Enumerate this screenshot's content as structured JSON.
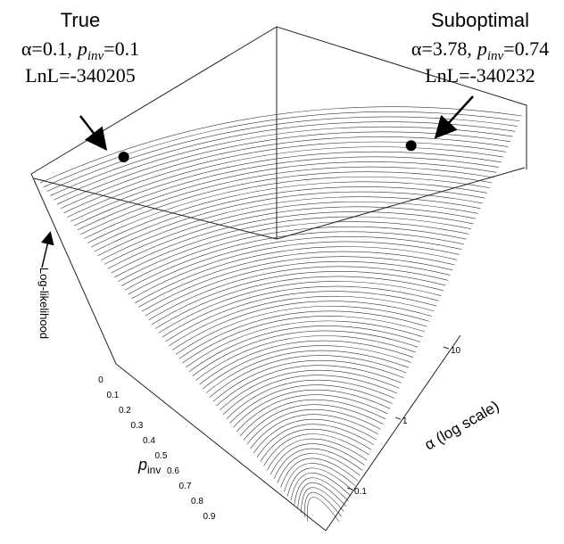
{
  "chart_data": {
    "type": "surface3d",
    "param_symbol": "p",
    "param_subscript": "inv",
    "zlabel": "Log-likelihood",
    "xlabel_alpha": "α (log scale)",
    "alpha_log": true,
    "alpha_lim": [
      0.03,
      16
    ],
    "alpha_ticks": [
      0.1,
      1,
      10
    ],
    "pinv_lim": [
      -0.1,
      1.0
    ],
    "pinv_ticks": [
      0,
      0.1,
      0.2,
      0.3,
      0.4,
      0.5,
      0.6,
      0.7,
      0.8,
      0.9
    ],
    "annotations": [
      {
        "label": "True",
        "alpha": {
          "value": 0.1,
          "label": "α=0.1,"
        },
        "pinv": {
          "value": 0.1,
          "label": "=0.1"
        },
        "lnl": {
          "value": -340205,
          "label": "LnL=-340205"
        }
      },
      {
        "label": "Suboptimal",
        "alpha": {
          "value": 3.78,
          "label": "α=3.78,"
        },
        "pinv": {
          "value": 0.74,
          "label": "=0.74"
        },
        "lnl": {
          "value": -340232,
          "label": "LnL=-340232"
        }
      }
    ]
  }
}
